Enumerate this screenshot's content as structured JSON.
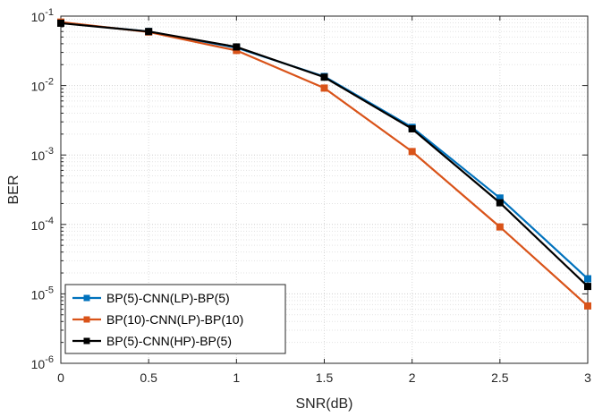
{
  "chart_data": {
    "type": "line",
    "title": "",
    "xlabel": "SNR(dB)",
    "ylabel": "BER",
    "x": [
      0,
      0.5,
      1,
      1.5,
      2,
      2.5,
      3
    ],
    "xticks": [
      "0",
      "0.5",
      "1",
      "1.5",
      "2",
      "2.5",
      "3"
    ],
    "xlim": [
      0,
      3
    ],
    "ylim": [
      1e-06,
      0.1
    ],
    "yscale": "log",
    "yticks": [
      {
        "value": 0.1,
        "exp": "-1"
      },
      {
        "value": 0.01,
        "exp": "-2"
      },
      {
        "value": 0.001,
        "exp": "-3"
      },
      {
        "value": 0.0001,
        "exp": "-4"
      },
      {
        "value": 1e-05,
        "exp": "-5"
      },
      {
        "value": 1e-06,
        "exp": "-6"
      }
    ],
    "tick_base": "10",
    "grid": true,
    "legend_position": "bottom-left",
    "series": [
      {
        "name": "BP(5)-CNN(LP)-BP(5)",
        "color": "#0072BD",
        "marker": "square",
        "values": [
          0.08,
          0.06,
          0.035,
          0.0135,
          0.0025,
          0.00024,
          1.65e-05
        ]
      },
      {
        "name": "BP(10)-CNN(LP)-BP(10)",
        "color": "#D95319",
        "marker": "square",
        "values": [
          0.082,
          0.059,
          0.032,
          0.0092,
          0.00112,
          9.2e-05,
          6.7e-06
        ]
      },
      {
        "name": "BP(5)-CNN(HP)-BP(5)",
        "color": "#000000",
        "marker": "square",
        "values": [
          0.079,
          0.06,
          0.036,
          0.0132,
          0.00238,
          0.000205,
          1.28e-05
        ]
      }
    ]
  }
}
